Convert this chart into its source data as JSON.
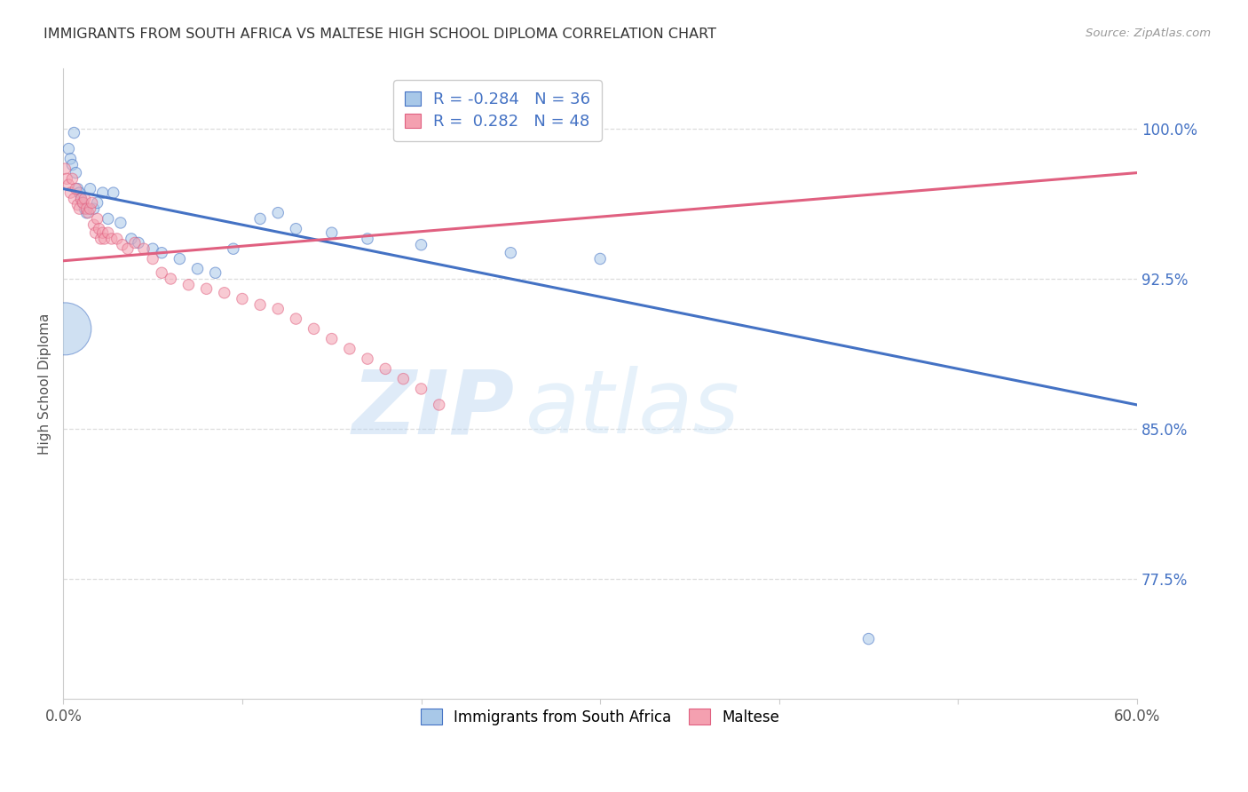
{
  "title": "IMMIGRANTS FROM SOUTH AFRICA VS MALTESE HIGH SCHOOL DIPLOMA CORRELATION CHART",
  "source": "Source: ZipAtlas.com",
  "ylabel": "High School Diploma",
  "ytick_labels": [
    "100.0%",
    "92.5%",
    "85.0%",
    "77.5%"
  ],
  "ytick_values": [
    1.0,
    0.925,
    0.85,
    0.775
  ],
  "xlim": [
    0.0,
    0.6
  ],
  "ylim": [
    0.715,
    1.03
  ],
  "legend1_label": "R = -0.284   N = 36",
  "legend2_label": "R =  0.282   N = 48",
  "blue_color": "#a8c8e8",
  "pink_color": "#f4a0b0",
  "trendline_blue": "#4472c4",
  "trendline_pink": "#e06080",
  "blue_scatter_x": [
    0.003,
    0.004,
    0.005,
    0.006,
    0.007,
    0.008,
    0.009,
    0.01,
    0.011,
    0.012,
    0.013,
    0.015,
    0.017,
    0.019,
    0.022,
    0.025,
    0.028,
    0.032,
    0.038,
    0.042,
    0.05,
    0.055,
    0.065,
    0.075,
    0.085,
    0.095,
    0.11,
    0.12,
    0.13,
    0.15,
    0.17,
    0.2,
    0.25,
    0.3,
    0.45,
    0.001
  ],
  "blue_scatter_y": [
    0.99,
    0.985,
    0.982,
    0.998,
    0.978,
    0.97,
    0.968,
    0.965,
    0.963,
    0.96,
    0.958,
    0.97,
    0.96,
    0.963,
    0.968,
    0.955,
    0.968,
    0.953,
    0.945,
    0.943,
    0.94,
    0.938,
    0.935,
    0.93,
    0.928,
    0.94,
    0.955,
    0.958,
    0.95,
    0.948,
    0.945,
    0.942,
    0.938,
    0.935,
    0.745,
    0.9
  ],
  "blue_scatter_size": [
    80,
    80,
    80,
    80,
    80,
    80,
    80,
    80,
    80,
    80,
    80,
    80,
    80,
    80,
    80,
    80,
    80,
    80,
    80,
    80,
    80,
    80,
    80,
    80,
    80,
    80,
    80,
    80,
    80,
    80,
    80,
    80,
    80,
    80,
    80,
    1800
  ],
  "pink_scatter_x": [
    0.001,
    0.002,
    0.003,
    0.004,
    0.005,
    0.006,
    0.007,
    0.008,
    0.009,
    0.01,
    0.011,
    0.012,
    0.013,
    0.014,
    0.015,
    0.016,
    0.017,
    0.018,
    0.019,
    0.02,
    0.021,
    0.022,
    0.023,
    0.025,
    0.027,
    0.03,
    0.033,
    0.036,
    0.04,
    0.045,
    0.05,
    0.055,
    0.06,
    0.07,
    0.08,
    0.09,
    0.1,
    0.11,
    0.12,
    0.13,
    0.14,
    0.15,
    0.16,
    0.17,
    0.18,
    0.19,
    0.2,
    0.21
  ],
  "pink_scatter_y": [
    0.98,
    0.975,
    0.972,
    0.968,
    0.975,
    0.965,
    0.97,
    0.962,
    0.96,
    0.965,
    0.963,
    0.965,
    0.96,
    0.958,
    0.96,
    0.963,
    0.952,
    0.948,
    0.955,
    0.95,
    0.945,
    0.948,
    0.945,
    0.948,
    0.945,
    0.945,
    0.942,
    0.94,
    0.943,
    0.94,
    0.935,
    0.928,
    0.925,
    0.922,
    0.92,
    0.918,
    0.915,
    0.912,
    0.91,
    0.905,
    0.9,
    0.895,
    0.89,
    0.885,
    0.88,
    0.875,
    0.87,
    0.862
  ],
  "pink_scatter_size": [
    80,
    80,
    80,
    80,
    80,
    80,
    80,
    80,
    80,
    80,
    80,
    80,
    80,
    80,
    80,
    80,
    80,
    80,
    80,
    80,
    80,
    80,
    80,
    80,
    80,
    80,
    80,
    80,
    80,
    80,
    80,
    80,
    80,
    80,
    80,
    80,
    80,
    80,
    80,
    80,
    80,
    80,
    80,
    80,
    80,
    80,
    80,
    80
  ],
  "blue_trend_x0": 0.0,
  "blue_trend_x1": 0.6,
  "blue_trend_y0": 0.97,
  "blue_trend_y1": 0.862,
  "pink_trend_x0": 0.0,
  "pink_trend_x1": 0.6,
  "pink_trend_y0": 0.934,
  "pink_trend_y1": 0.978,
  "watermark_line1": "ZIP",
  "watermark_line2": "atlas",
  "background_color": "#ffffff",
  "grid_color": "#dddddd",
  "legend_blue_R": "R = -0.284",
  "legend_blue_N": "N = 36",
  "legend_pink_R": "R =  0.282",
  "legend_pink_N": "N = 48"
}
